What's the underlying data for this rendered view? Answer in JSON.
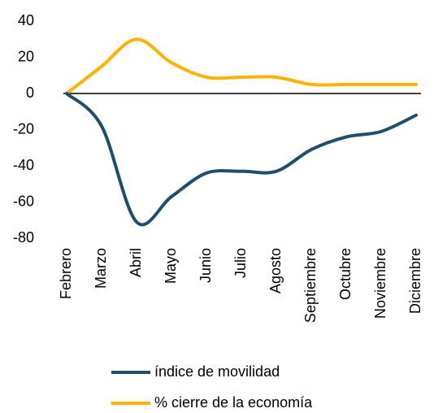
{
  "chart_data": {
    "type": "line",
    "categories": [
      "Febrero",
      "Marzo",
      "Abril",
      "Mayo",
      "Junio",
      "Julio",
      "Agosto",
      "Septiembre",
      "Octubre",
      "Noviembre",
      "Diciembre"
    ],
    "series": [
      {
        "name": "índice de movilidad",
        "color": "#1d4e6e",
        "values": [
          0,
          -18,
          -71,
          -57,
          -44,
          -43,
          -43,
          -31,
          -24,
          -21,
          -12
        ]
      },
      {
        "name": "% cierre de la economía",
        "color": "#ffb300",
        "values": [
          0,
          15,
          30,
          17,
          9,
          9,
          9,
          5,
          5,
          5,
          5
        ]
      }
    ],
    "ylim": [
      -80,
      40
    ],
    "yticks": [
      -80,
      -60,
      -40,
      -20,
      0,
      20,
      40
    ],
    "grid": false,
    "legend": "bottom"
  }
}
